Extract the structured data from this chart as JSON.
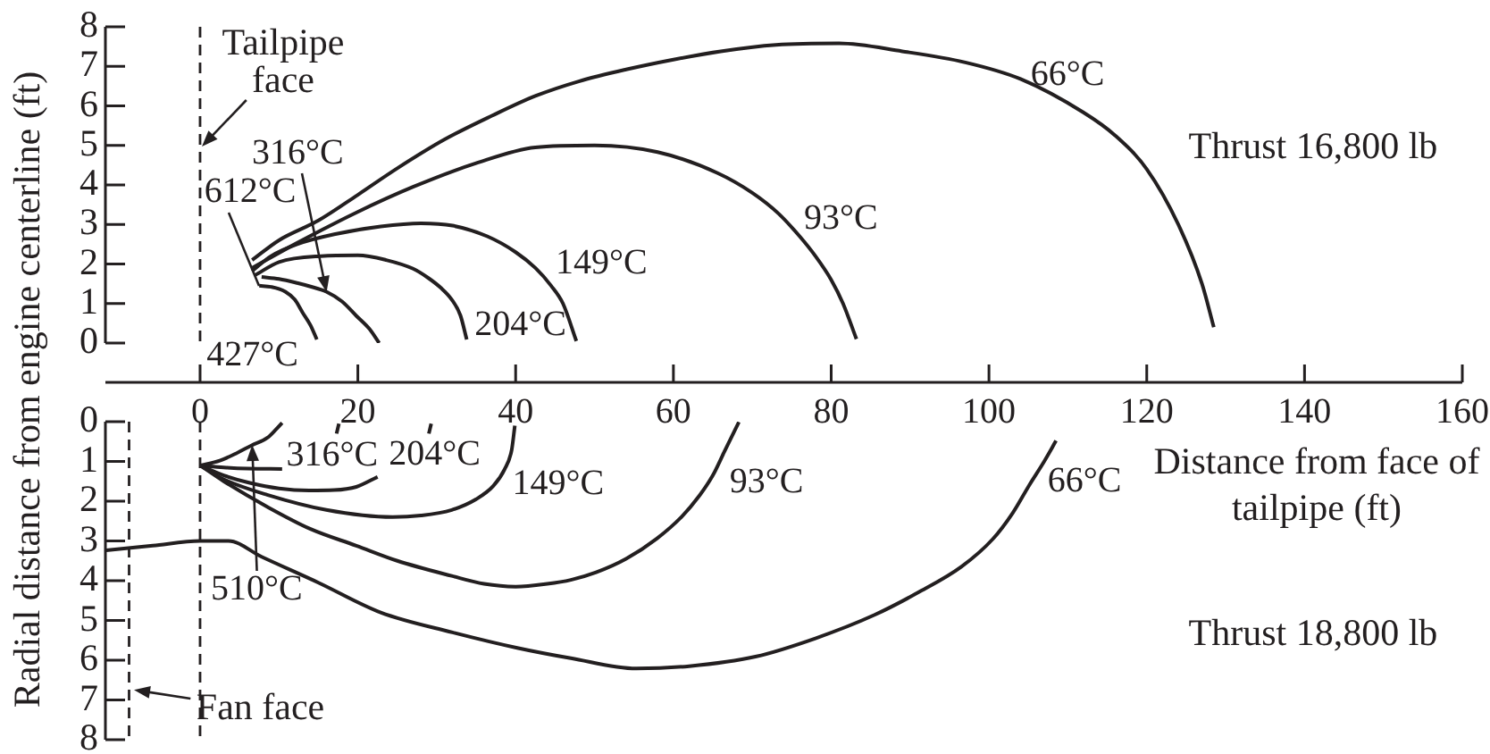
{
  "chart_data": [
    {
      "type": "line",
      "xlabel": "Distance from face of tailpipe (ft)",
      "ylabel": "Radial distance from engine centerline (ft)",
      "xlim": [
        -12,
        160
      ],
      "xticks": [
        0,
        20,
        40,
        60,
        80,
        100,
        120,
        140,
        160
      ],
      "ylim": [
        0,
        8
      ],
      "yticks": [
        0,
        1,
        2,
        3,
        4,
        5,
        6,
        7,
        8
      ],
      "series": [
        {
          "name": "66°C",
          "color": "#231f20",
          "x": [
            6.6,
            10,
            15,
            20,
            25,
            31,
            37,
            42.5,
            48,
            54,
            60,
            66,
            73,
            81,
            89,
            97,
            104,
            112,
            116,
            120,
            124,
            127,
            128.5
          ],
          "values": [
            2.1,
            2.6,
            3.1,
            3.75,
            4.42,
            5.15,
            5.75,
            6.25,
            6.62,
            6.92,
            7.17,
            7.38,
            7.54,
            7.58,
            7.38,
            7.1,
            6.68,
            5.83,
            5.25,
            4.4,
            3.0,
            1.5,
            0.4
          ]
        },
        {
          "name": "93°C",
          "color": "#231f20",
          "x": [
            6.6,
            12,
            19.8,
            27,
            35,
            42.5,
            50,
            58,
            65.6,
            70,
            73.3,
            76,
            78,
            80,
            81.5,
            83.2
          ],
          "values": [
            1.9,
            2.5,
            3.3,
            3.95,
            4.55,
            4.95,
            5.0,
            4.83,
            4.3,
            3.8,
            3.28,
            2.7,
            2.2,
            1.6,
            1.0,
            0.1
          ]
        },
        {
          "name": "149°C",
          "color": "#231f20",
          "x": [
            6.6,
            9,
            12.3,
            17,
            22.9,
            28,
            32,
            36.4,
            40,
            42.5,
            44.5,
            46,
            47.7
          ],
          "values": [
            1.82,
            2.2,
            2.5,
            2.75,
            2.95,
            3.03,
            2.97,
            2.7,
            2.3,
            1.9,
            1.45,
            1.0,
            0.05
          ]
        },
        {
          "name": "204°C",
          "color": "#231f20",
          "x": [
            7,
            10,
            15.3,
            20,
            23.6,
            27,
            28.9,
            30.5,
            31.9,
            33,
            33.8
          ],
          "values": [
            1.72,
            2.05,
            2.2,
            2.22,
            2.1,
            1.88,
            1.65,
            1.4,
            1.1,
            0.7,
            0.09
          ]
        },
        {
          "name": "316°C",
          "color": "#231f20",
          "x": [
            7.8,
            10,
            12.3,
            14,
            16,
            18,
            19.8,
            21.5,
            22.7
          ],
          "values": [
            1.67,
            1.62,
            1.52,
            1.43,
            1.3,
            1.05,
            0.69,
            0.35,
            0
          ]
        },
        {
          "name": "427°C",
          "color": "#231f20",
          "x": [
            7.5,
            9,
            10.8,
            12,
            13,
            14,
            14.8
          ],
          "values": [
            1.45,
            1.42,
            1.3,
            1.1,
            0.77,
            0.45,
            0.09
          ]
        }
      ],
      "ref_lines": [
        {
          "axis": "x",
          "value": 0,
          "label": "Tailpipe face",
          "line_style": "dashed"
        }
      ],
      "annotations": [
        "Thrust 16,800 lb",
        {
          "text": "612°C",
          "x": 7.5,
          "y": 1.45
        }
      ]
    },
    {
      "type": "line",
      "xlim": [
        -12,
        160
      ],
      "ylim": [
        8,
        0
      ],
      "yticks": [
        0,
        1,
        2,
        3,
        4,
        5,
        6,
        7,
        8
      ],
      "tick_labels": "y",
      "series": [
        {
          "name": "66°C",
          "color": "#231f20",
          "x": [
            -12,
            -6,
            0,
            3.6,
            7.8,
            15,
            22.9,
            32,
            40.2,
            47,
            55.3,
            62,
            70.4,
            78,
            85.5,
            91,
            96.5,
            100.5,
            103,
            105.1,
            107,
            108.5
          ],
          "values": [
            3.24,
            3.12,
            3.0,
            3.0,
            3.4,
            4.05,
            4.8,
            5.3,
            5.69,
            5.95,
            6.21,
            6.15,
            5.91,
            5.45,
            4.86,
            4.3,
            3.65,
            2.95,
            2.3,
            1.6,
            1.0,
            0.48
          ]
        },
        {
          "name": "93°C",
          "color": "#231f20",
          "x": [
            0,
            3,
            8.5,
            14,
            19.8,
            25,
            31.9,
            36,
            40,
            44,
            47,
            50.2,
            54,
            57.9,
            61,
            63.3,
            65,
            66.4,
            68.3
          ],
          "values": [
            1.1,
            1.5,
            2.14,
            2.7,
            3.12,
            3.5,
            3.88,
            4.08,
            4.15,
            4.08,
            3.98,
            3.79,
            3.45,
            2.94,
            2.4,
            1.86,
            1.35,
            0.78,
            0.01
          ]
        },
        {
          "name": "149°C",
          "color": "#231f20",
          "x": [
            0,
            3,
            8.5,
            16,
            24.4,
            28,
            31.9,
            35,
            37.2,
            38.6,
            39.5,
            39.9
          ],
          "values": [
            1.1,
            1.45,
            1.84,
            2.22,
            2.4,
            2.36,
            2.22,
            1.95,
            1.61,
            1.2,
            0.71,
            0.1
          ]
        },
        {
          "name": "204°C",
          "color": "#231f20",
          "x": [
            0,
            3,
            6.3,
            10,
            13.8,
            17,
            19.8,
            22.5,
            25.5,
            29,
            29.3
          ],
          "values": [
            1.1,
            1.35,
            1.54,
            1.68,
            1.73,
            1.72,
            1.64,
            1.39,
            null,
            0.3,
            0.05
          ]
        },
        {
          "name": "316°C",
          "color": "#231f20",
          "x": [
            0,
            3,
            6,
            10.4,
            14,
            17.3,
            17.6
          ],
          "values": [
            1.1,
            1.15,
            1.18,
            1.19,
            null,
            0.3,
            0.05
          ]
        },
        {
          "name": "510°C",
          "color": "#231f20",
          "x": [
            0,
            2.5,
            4.75,
            6.5,
            8.5,
            9.6,
            10.4
          ],
          "values": [
            1.1,
            0.98,
            0.78,
            0.6,
            0.41,
            0.2,
            0.03
          ]
        }
      ],
      "ref_lines": [
        {
          "axis": "x",
          "value": -9,
          "label": "Fan face",
          "line_style": "dashed"
        },
        {
          "axis": "x",
          "value": 0,
          "line_style": "dashed"
        }
      ],
      "annotations": [
        "Thrust 18,800 lb"
      ]
    }
  ]
}
